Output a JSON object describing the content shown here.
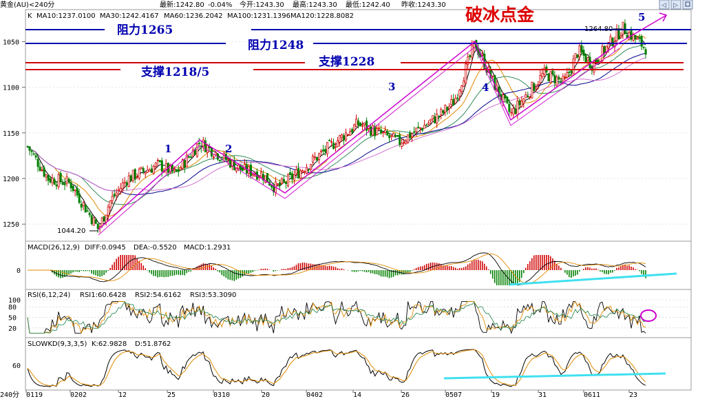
{
  "topbar": {
    "title": "黄金(AU)<240分",
    "quote_latest": "最新:1242.80",
    "quote_change": "-0.04%",
    "quote_open": "今开:1243.30",
    "quote_high": "最高:1243.30",
    "quote_low": "最低:1242.40",
    "quote_prevclose": "昨收:1243.30"
  },
  "headline": "破冰点金",
  "price_panel": {
    "prefix": "K",
    "ma10": "MA10:1237.0100",
    "ma30": "MA30:1242.4167",
    "ma60": "MA60:1236.2042",
    "ma100": "MA100:1231.1396",
    "ma120": "MA120:1228.8082",
    "high_label": "1264.80",
    "low_label": "1044.20",
    "yticks": [
      "1250",
      "1200",
      "1150",
      "1100",
      "1050"
    ]
  },
  "annotations": {
    "res1265": "阻力1265",
    "res1248": "阻力1248",
    "sup1228": "支撑1228",
    "sup1218": "支撑1218/5",
    "wave1": "1",
    "wave2": "2",
    "wave3": "3",
    "wave4": "4",
    "wave5": "5"
  },
  "macd_panel": {
    "title": "MACD(26,12,9)",
    "diff": "DIFF:0.0945",
    "dea": "DEA:-0.5520",
    "macd": "MACD:1.2931",
    "ytick": "0"
  },
  "rsi_panel": {
    "title": "RSI(6,12,24)",
    "rsi1": "RSI1:60.6428",
    "rsi2": "RSI2:54.6162",
    "rsi3": "RSI3:53.3090",
    "yticks": [
      "100",
      "80",
      "50",
      "20",
      "0"
    ]
  },
  "kd_panel": {
    "title": "SLOWKD(9,3,3,5)",
    "k": "K:62.9828",
    "d": "D:51.8762",
    "ytick": "60"
  },
  "xaxis": {
    "period": "240分",
    "ticks": [
      "0119",
      "0202",
      "12",
      "25",
      "0310",
      "20",
      "0402",
      "14",
      "26",
      "0507",
      "19",
      "31",
      "0611",
      "23"
    ]
  },
  "colors": {
    "ma10": "#000000",
    "ma30": "#e08a00",
    "ma60": "#2e8b57",
    "ma100": "#00008b",
    "ma120": "#d070d0",
    "up": "#d00000",
    "down": "#008000",
    "wave": "#cc00cc",
    "resist": "#0000b0",
    "support": "#d00000",
    "trend": "#40e0f0"
  },
  "chart_data": [
    {
      "type": "candlestick",
      "title": "黄金(AU)<240分",
      "series": [
        {
          "name": "MA10",
          "value": 1237.01
        },
        {
          "name": "MA30",
          "value": 1242.4167
        },
        {
          "name": "MA60",
          "value": 1236.2042
        },
        {
          "name": "MA100",
          "value": 1231.1396
        },
        {
          "name": "MA120",
          "value": 1228.8082
        }
      ],
      "x_ticks": [
        "0119",
        "0202",
        "12",
        "25",
        "0310",
        "20",
        "0402",
        "14",
        "26",
        "0507",
        "19",
        "31",
        "0611",
        "23"
      ],
      "ylim": [
        1030,
        1275
      ],
      "yticks": [
        1050,
        1100,
        1150,
        1200,
        1250
      ],
      "path_points": [
        {
          "x": "0119",
          "y": 1135
        },
        {
          "x": "0124",
          "y": 1100
        },
        {
          "x": "0202",
          "y": 1095
        },
        {
          "x": "0205",
          "y": 1044.2
        },
        {
          "x": "0208",
          "y": 1075
        },
        {
          "x": "12",
          "y": 1100
        },
        {
          "x": "20",
          "y": 1115
        },
        {
          "x": "25",
          "y": 1105
        },
        {
          "x": "0301",
          "y": 1140
        },
        {
          "x": "0310",
          "y": 1120
        },
        {
          "x": "15",
          "y": 1110
        },
        {
          "x": "20",
          "y": 1105
        },
        {
          "x": "0330",
          "y": 1090
        },
        {
          "x": "0402",
          "y": 1095
        },
        {
          "x": "14",
          "y": 1160
        },
        {
          "x": "26",
          "y": 1140
        },
        {
          "x": "0501",
          "y": 1170
        },
        {
          "x": "0507",
          "y": 1185
        },
        {
          "x": "0512",
          "y": 1248
        },
        {
          "x": "19",
          "y": 1200
        },
        {
          "x": "0522",
          "y": 1170
        },
        {
          "x": "31",
          "y": 1215
        },
        {
          "x": "0606",
          "y": 1205
        },
        {
          "x": "0611",
          "y": 1240
        },
        {
          "x": "0616",
          "y": 1225
        },
        {
          "x": "23",
          "y": 1264.8
        },
        {
          "x": "0626",
          "y": 1242.8
        }
      ],
      "levels": [
        {
          "label": "阻力1265",
          "value": 1265
        },
        {
          "label": "阻力1248",
          "value": 1248
        },
        {
          "label": "支撑1228",
          "value": 1228
        },
        {
          "label": "支撑1218/5",
          "value": 1218
        }
      ],
      "annotations": [
        {
          "text": "1",
          "x": "0220"
        },
        {
          "text": "2",
          "x": "0310"
        },
        {
          "text": "3",
          "x": "26"
        },
        {
          "text": "4",
          "x": "19"
        },
        {
          "text": "5",
          "x": "23"
        },
        {
          "text": "1264.80",
          "x": "23",
          "y": 1264.8
        },
        {
          "text": "1044.20",
          "x": "0205",
          "y": 1044.2
        }
      ]
    },
    {
      "type": "bar",
      "title": "MACD(26,12,9)",
      "series": [
        {
          "name": "DIFF",
          "value": 0.0945
        },
        {
          "name": "DEA",
          "value": -0.552
        },
        {
          "name": "MACD",
          "value": 1.2931
        }
      ],
      "yticks": [
        0
      ]
    },
    {
      "type": "line",
      "title": "RSI(6,12,24)",
      "series": [
        {
          "name": "RSI1",
          "value": 60.6428
        },
        {
          "name": "RSI2",
          "value": 54.6162
        },
        {
          "name": "RSI3",
          "value": 53.309
        }
      ],
      "ylim": [
        0,
        100
      ],
      "yticks": [
        20,
        50,
        80,
        100
      ]
    },
    {
      "type": "line",
      "title": "SLOWKD(9,3,3,5)",
      "series": [
        {
          "name": "K",
          "value": 62.9828
        },
        {
          "name": "D",
          "value": 51.8762
        }
      ],
      "yticks": [
        60
      ]
    }
  ]
}
